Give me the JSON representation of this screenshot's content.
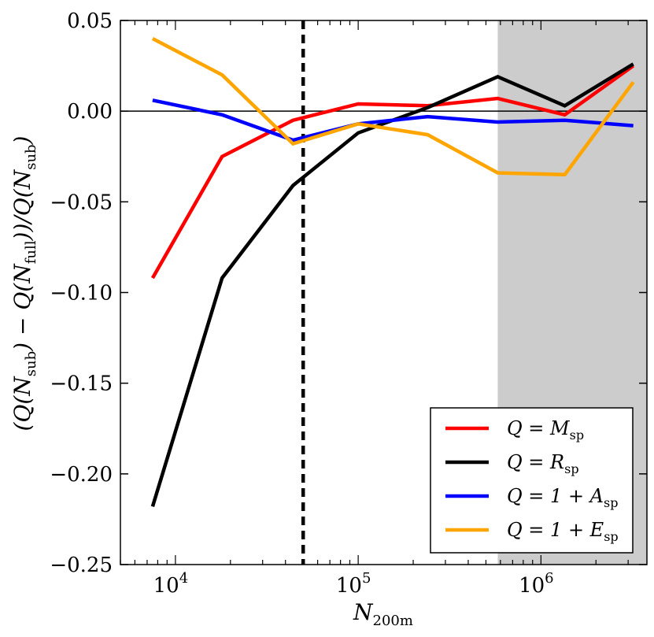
{
  "chart_data": {
    "type": "line",
    "title": "",
    "xlabel": "N_200m",
    "ylabel": "(Q(N_sub) − Q(N_full)) / Q(N_sub)",
    "xscale": "log",
    "xlim": [
      5000,
      3800000
    ],
    "ylim": [
      -0.25,
      0.05
    ],
    "x_tick_labels": [
      {
        "value": 10000,
        "base": "10",
        "exp": "4"
      },
      {
        "value": 100000,
        "base": "10",
        "exp": "5"
      },
      {
        "value": 1000000,
        "base": "10",
        "exp": "6"
      }
    ],
    "y_ticks": [
      0.05,
      0.0,
      -0.05,
      -0.1,
      -0.15,
      -0.2,
      -0.25
    ],
    "y_tick_labels": [
      "0.05",
      "0.00",
      "−0.05",
      "−0.10",
      "−0.15",
      "−0.20",
      "−0.25"
    ],
    "reference_lines": {
      "horizontal_zero": 0.0,
      "vertical_dashed_x": 50000
    },
    "shaded_region": {
      "x_from": 580000,
      "x_to": 3800000,
      "color": "#cccccc"
    },
    "x": [
      7500,
      18000,
      44000,
      100000,
      240000,
      580000,
      1350000,
      3200000
    ],
    "series": [
      {
        "name": "Q = M_sp",
        "label_lhs": "Q",
        "label_rhs": "M",
        "label_sub": "sp",
        "color": "#ff0000",
        "values": [
          -0.092,
          -0.025,
          -0.005,
          0.004,
          0.003,
          0.007,
          -0.002,
          0.025
        ]
      },
      {
        "name": "Q = R_sp",
        "label_lhs": "Q",
        "label_rhs": "R",
        "label_sub": "sp",
        "color": "#000000",
        "values": [
          -0.218,
          -0.092,
          -0.041,
          -0.012,
          0.002,
          0.019,
          0.003,
          0.026
        ]
      },
      {
        "name": "Q = 1 + A_sp",
        "label_lhs": "Q",
        "label_rhs": "1 + A",
        "label_sub": "sp",
        "color": "#0000ff",
        "values": [
          0.006,
          -0.002,
          -0.016,
          -0.007,
          -0.003,
          -0.006,
          -0.005,
          -0.008
        ]
      },
      {
        "name": "Q = 1 + E_sp",
        "label_lhs": "Q",
        "label_rhs": "1 + E",
        "label_sub": "sp",
        "color": "#ffa500",
        "values": [
          0.04,
          0.02,
          -0.018,
          -0.007,
          -0.013,
          -0.034,
          -0.035,
          0.016
        ]
      }
    ],
    "legend": {
      "position": "lower-right"
    }
  }
}
